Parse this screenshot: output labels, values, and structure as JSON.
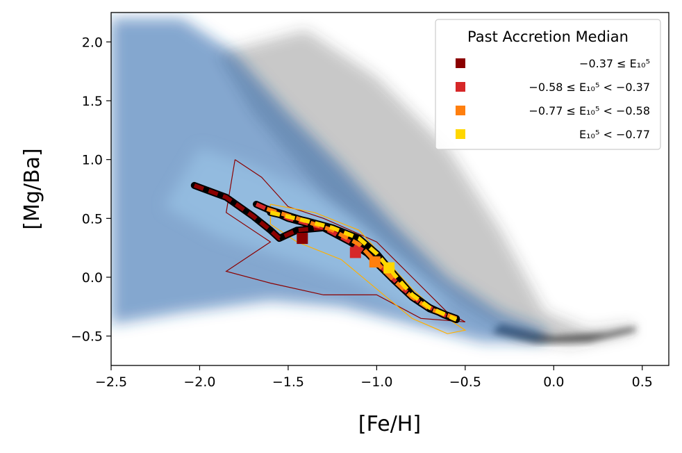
{
  "chart_data": {
    "type": "scatter",
    "xlabel": "[Fe/H]",
    "ylabel": "[Mg/Ba]",
    "xlim": [
      -2.5,
      0.65
    ],
    "ylim": [
      -0.75,
      2.25
    ],
    "grid": false,
    "xticks": [
      {
        "value": -2.5,
        "label": "−2.5"
      },
      {
        "value": -2.0,
        "label": "−2.0"
      },
      {
        "value": -1.5,
        "label": "−1.5"
      },
      {
        "value": -1.0,
        "label": "−1.0"
      },
      {
        "value": -0.5,
        "label": "−0.5"
      },
      {
        "value": 0.0,
        "label": "0.0"
      },
      {
        "value": 0.5,
        "label": "0.5"
      }
    ],
    "yticks": [
      {
        "value": -0.5,
        "label": "−0.5"
      },
      {
        "value": 0.0,
        "label": "0.0"
      },
      {
        "value": 0.5,
        "label": "0.5"
      },
      {
        "value": 1.0,
        "label": "1.0"
      },
      {
        "value": 1.5,
        "label": "1.5"
      },
      {
        "value": 2.0,
        "label": "2.0"
      }
    ],
    "legend": {
      "title": "Past Accretion Median",
      "placement": "top-right",
      "entries": [
        {
          "label": "−0.37 ≤ E₁₀⁵",
          "color": "#8b0000"
        },
        {
          "label": "−0.58 ≤ E₁₀⁵ < −0.37",
          "color": "#d62728"
        },
        {
          "label": "−0.77 ≤ E₁₀⁵ < −0.58",
          "color": "#ff7f0e"
        },
        {
          "label": "E₁₀⁵ < −0.77",
          "color": "#ffd700"
        }
      ]
    },
    "median_tracks": [
      {
        "color": "#8b0000",
        "points": [
          [
            -2.03,
            0.78
          ],
          [
            -1.85,
            0.68
          ],
          [
            -1.7,
            0.52
          ],
          [
            -1.6,
            0.4
          ],
          [
            -1.55,
            0.33
          ],
          [
            -1.45,
            0.4
          ],
          [
            -1.3,
            0.42
          ],
          [
            -1.15,
            0.36
          ]
        ]
      },
      {
        "color": "#d62728",
        "points": [
          [
            -1.68,
            0.62
          ],
          [
            -1.5,
            0.5
          ],
          [
            -1.3,
            0.42
          ],
          [
            -1.15,
            0.3
          ],
          [
            -1.05,
            0.2
          ],
          [
            -0.95,
            0.05
          ],
          [
            -0.85,
            -0.1
          ],
          [
            -0.75,
            -0.22
          ],
          [
            -0.62,
            -0.32
          ],
          [
            -0.55,
            -0.36
          ]
        ]
      },
      {
        "color": "#ff7f0e",
        "points": [
          [
            -1.62,
            0.58
          ],
          [
            -1.45,
            0.5
          ],
          [
            -1.25,
            0.4
          ],
          [
            -1.1,
            0.28
          ],
          [
            -1.0,
            0.12
          ],
          [
            -0.9,
            -0.03
          ],
          [
            -0.8,
            -0.17
          ],
          [
            -0.7,
            -0.27
          ],
          [
            -0.55,
            -0.35
          ]
        ]
      },
      {
        "color": "#ffd700",
        "points": [
          [
            -1.6,
            0.55
          ],
          [
            -1.4,
            0.48
          ],
          [
            -1.25,
            0.42
          ],
          [
            -1.1,
            0.33
          ],
          [
            -1.0,
            0.2
          ],
          [
            -0.9,
            0.02
          ],
          [
            -0.8,
            -0.15
          ],
          [
            -0.7,
            -0.26
          ],
          [
            -0.55,
            -0.36
          ]
        ]
      }
    ],
    "median_markers": [
      {
        "x": -1.42,
        "y": 0.33,
        "color": "#8b0000"
      },
      {
        "x": -1.12,
        "y": 0.21,
        "color": "#d62728"
      },
      {
        "x": -1.01,
        "y": 0.13,
        "color": "#ff7f0e"
      },
      {
        "x": -0.93,
        "y": 0.08,
        "color": "#ffd700"
      }
    ],
    "density_layers": {
      "background_color": "#3a3a3a",
      "accreted_color": "#1f5fa8"
    }
  }
}
